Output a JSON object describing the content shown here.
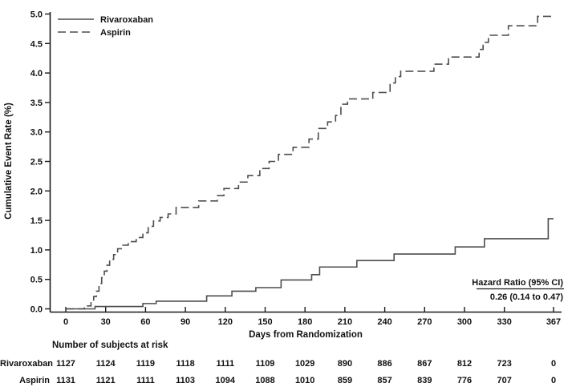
{
  "chart_data": {
    "type": "line",
    "subtype": "kaplan-meier-step",
    "title": "",
    "xlabel": "Days from Randomization",
    "ylabel": "Cumulative Event Rate (%)",
    "xlim": [
      0,
      367
    ],
    "ylim": [
      0,
      5.0
    ],
    "x_ticks": [
      0,
      30,
      60,
      90,
      120,
      150,
      180,
      210,
      240,
      270,
      300,
      330,
      367
    ],
    "y_ticks": [
      0.0,
      0.5,
      1.0,
      1.5,
      2.0,
      2.5,
      3.0,
      3.5,
      4.0,
      4.5,
      5.0
    ],
    "grid": false,
    "legend_position": "top-left",
    "axis_color": "#1a1a1a",
    "line_color": "#4d4d4d",
    "series": [
      {
        "name": "Rivaroxaban",
        "line_style": "solid",
        "color": "#4d4d4d",
        "steps": [
          [
            0,
            0
          ],
          [
            22,
            0.04
          ],
          [
            58,
            0.09
          ],
          [
            68,
            0.13
          ],
          [
            106,
            0.22
          ],
          [
            125,
            0.3
          ],
          [
            143,
            0.36
          ],
          [
            162,
            0.49
          ],
          [
            185,
            0.58
          ],
          [
            191,
            0.71
          ],
          [
            219,
            0.82
          ],
          [
            247,
            0.93
          ],
          [
            293,
            1.05
          ],
          [
            315,
            1.19
          ],
          [
            363,
            1.53
          ],
          [
            367,
            1.53
          ]
        ]
      },
      {
        "name": "Aspirin",
        "line_style": "dashed",
        "color": "#4d4d4d",
        "steps": [
          [
            0,
            0
          ],
          [
            14,
            0.05
          ],
          [
            19,
            0.13
          ],
          [
            21,
            0.21
          ],
          [
            23,
            0.3
          ],
          [
            25,
            0.43
          ],
          [
            27,
            0.53
          ],
          [
            29,
            0.64
          ],
          [
            31,
            0.74
          ],
          [
            33,
            0.84
          ],
          [
            36,
            0.92
          ],
          [
            39,
            1.02
          ],
          [
            43,
            1.08
          ],
          [
            47,
            1.14
          ],
          [
            53,
            1.21
          ],
          [
            58,
            1.29
          ],
          [
            62,
            1.4
          ],
          [
            66,
            1.49
          ],
          [
            71,
            1.55
          ],
          [
            77,
            1.61
          ],
          [
            83,
            1.72
          ],
          [
            100,
            1.83
          ],
          [
            114,
            1.92
          ],
          [
            119,
            2.04
          ],
          [
            130,
            2.15
          ],
          [
            137,
            2.26
          ],
          [
            146,
            2.38
          ],
          [
            153,
            2.5
          ],
          [
            160,
            2.62
          ],
          [
            171,
            2.74
          ],
          [
            183,
            2.88
          ],
          [
            190,
            3.06
          ],
          [
            197,
            3.17
          ],
          [
            203,
            3.28
          ],
          [
            207,
            3.47
          ],
          [
            212,
            3.56
          ],
          [
            231,
            3.67
          ],
          [
            244,
            3.83
          ],
          [
            248,
            3.94
          ],
          [
            252,
            4.03
          ],
          [
            277,
            4.15
          ],
          [
            288,
            4.27
          ],
          [
            311,
            4.4
          ],
          [
            314,
            4.52
          ],
          [
            318,
            4.64
          ],
          [
            333,
            4.8
          ],
          [
            355,
            4.96
          ],
          [
            367,
            4.96
          ]
        ]
      }
    ],
    "annotation": {
      "title": "Hazard Ratio (95% CI)",
      "value": "0.26 (0.14 to 0.47)"
    }
  },
  "risk_table": {
    "title": "Number of subjects at risk",
    "days": [
      0,
      30,
      60,
      90,
      120,
      150,
      180,
      210,
      240,
      270,
      300,
      330,
      367
    ],
    "rows": [
      {
        "label": "Rivaroxaban",
        "values": [
          "1127",
          "1124",
          "1119",
          "1118",
          "1111",
          "1109",
          "1029",
          "890",
          "886",
          "867",
          "812",
          "723",
          "0"
        ]
      },
      {
        "label": "Aspirin",
        "values": [
          "1131",
          "1121",
          "1111",
          "1103",
          "1094",
          "1088",
          "1010",
          "859",
          "857",
          "839",
          "776",
          "707",
          "0"
        ]
      }
    ]
  }
}
